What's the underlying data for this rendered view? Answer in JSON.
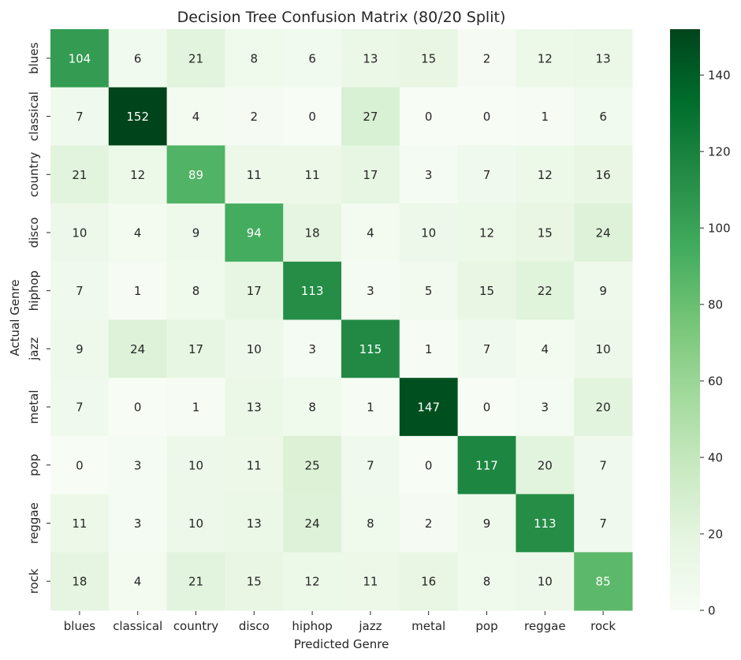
{
  "chart_data": {
    "type": "heatmap",
    "title": "Decision Tree Confusion Matrix (80/20 Split)",
    "xlabel": "Predicted Genre",
    "ylabel": "Actual Genre",
    "x_categories": [
      "blues",
      "classical",
      "country",
      "disco",
      "hiphop",
      "jazz",
      "metal",
      "pop",
      "reggae",
      "rock"
    ],
    "y_categories": [
      "blues",
      "classical",
      "country",
      "disco",
      "hiphop",
      "jazz",
      "metal",
      "pop",
      "reggae",
      "rock"
    ],
    "values": [
      [
        104,
        6,
        21,
        8,
        6,
        13,
        15,
        2,
        12,
        13
      ],
      [
        7,
        152,
        4,
        2,
        0,
        27,
        0,
        0,
        1,
        6
      ],
      [
        21,
        12,
        89,
        11,
        11,
        17,
        3,
        7,
        12,
        16
      ],
      [
        10,
        4,
        9,
        94,
        18,
        4,
        10,
        12,
        15,
        24
      ],
      [
        7,
        1,
        8,
        17,
        113,
        3,
        5,
        15,
        22,
        9
      ],
      [
        9,
        24,
        17,
        10,
        3,
        115,
        1,
        7,
        4,
        10
      ],
      [
        7,
        0,
        1,
        13,
        8,
        1,
        147,
        0,
        3,
        20
      ],
      [
        0,
        3,
        10,
        11,
        25,
        7,
        0,
        117,
        20,
        7
      ],
      [
        11,
        3,
        10,
        13,
        24,
        8,
        2,
        9,
        113,
        7
      ],
      [
        18,
        4,
        21,
        15,
        12,
        11,
        16,
        8,
        10,
        85
      ]
    ],
    "colorscale": "Greens",
    "colorbar": {
      "range": [
        0,
        152
      ],
      "ticks": [
        0,
        20,
        40,
        60,
        80,
        100,
        120,
        140
      ]
    },
    "annotations": "cell values"
  }
}
